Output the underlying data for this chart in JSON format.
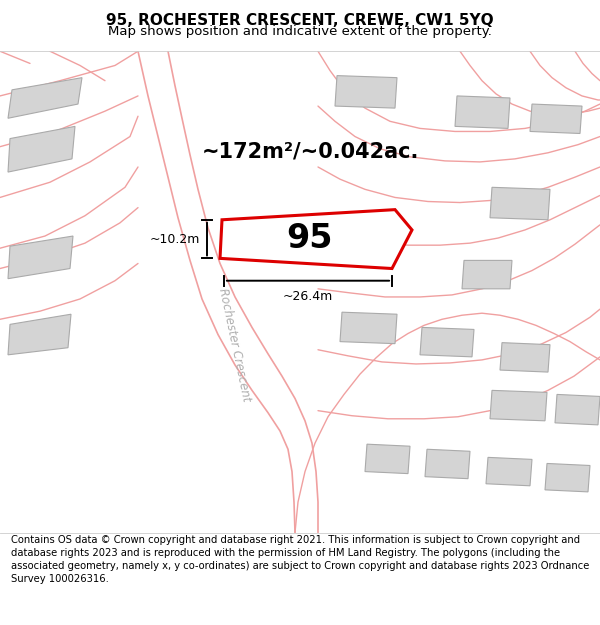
{
  "title": "95, ROCHESTER CRESCENT, CREWE, CW1 5YQ",
  "subtitle": "Map shows position and indicative extent of the property.",
  "footer": "Contains OS data © Crown copyright and database right 2021. This information is subject to Crown copyright and database rights 2023 and is reproduced with the permission of HM Land Registry. The polygons (including the associated geometry, namely x, y co-ordinates) are subject to Crown copyright and database rights 2023 Ordnance Survey 100026316.",
  "bg_color": "#ffffff",
  "map_bg": "#f5f5f3",
  "plot_color": "#dd0000",
  "road_color": "#f0a0a0",
  "building_color": "#d4d4d4",
  "building_edge": "#aaaaaa",
  "area_label": "~172m²/~0.042ac.",
  "number_label": "95",
  "dim_width": "~26.4m",
  "dim_height": "~10.2m",
  "street_label": "Rochester Crescent",
  "title_fontsize": 11,
  "subtitle_fontsize": 9.5,
  "footer_fontsize": 7.2,
  "label_fontsize": 15,
  "number_fontsize": 24
}
